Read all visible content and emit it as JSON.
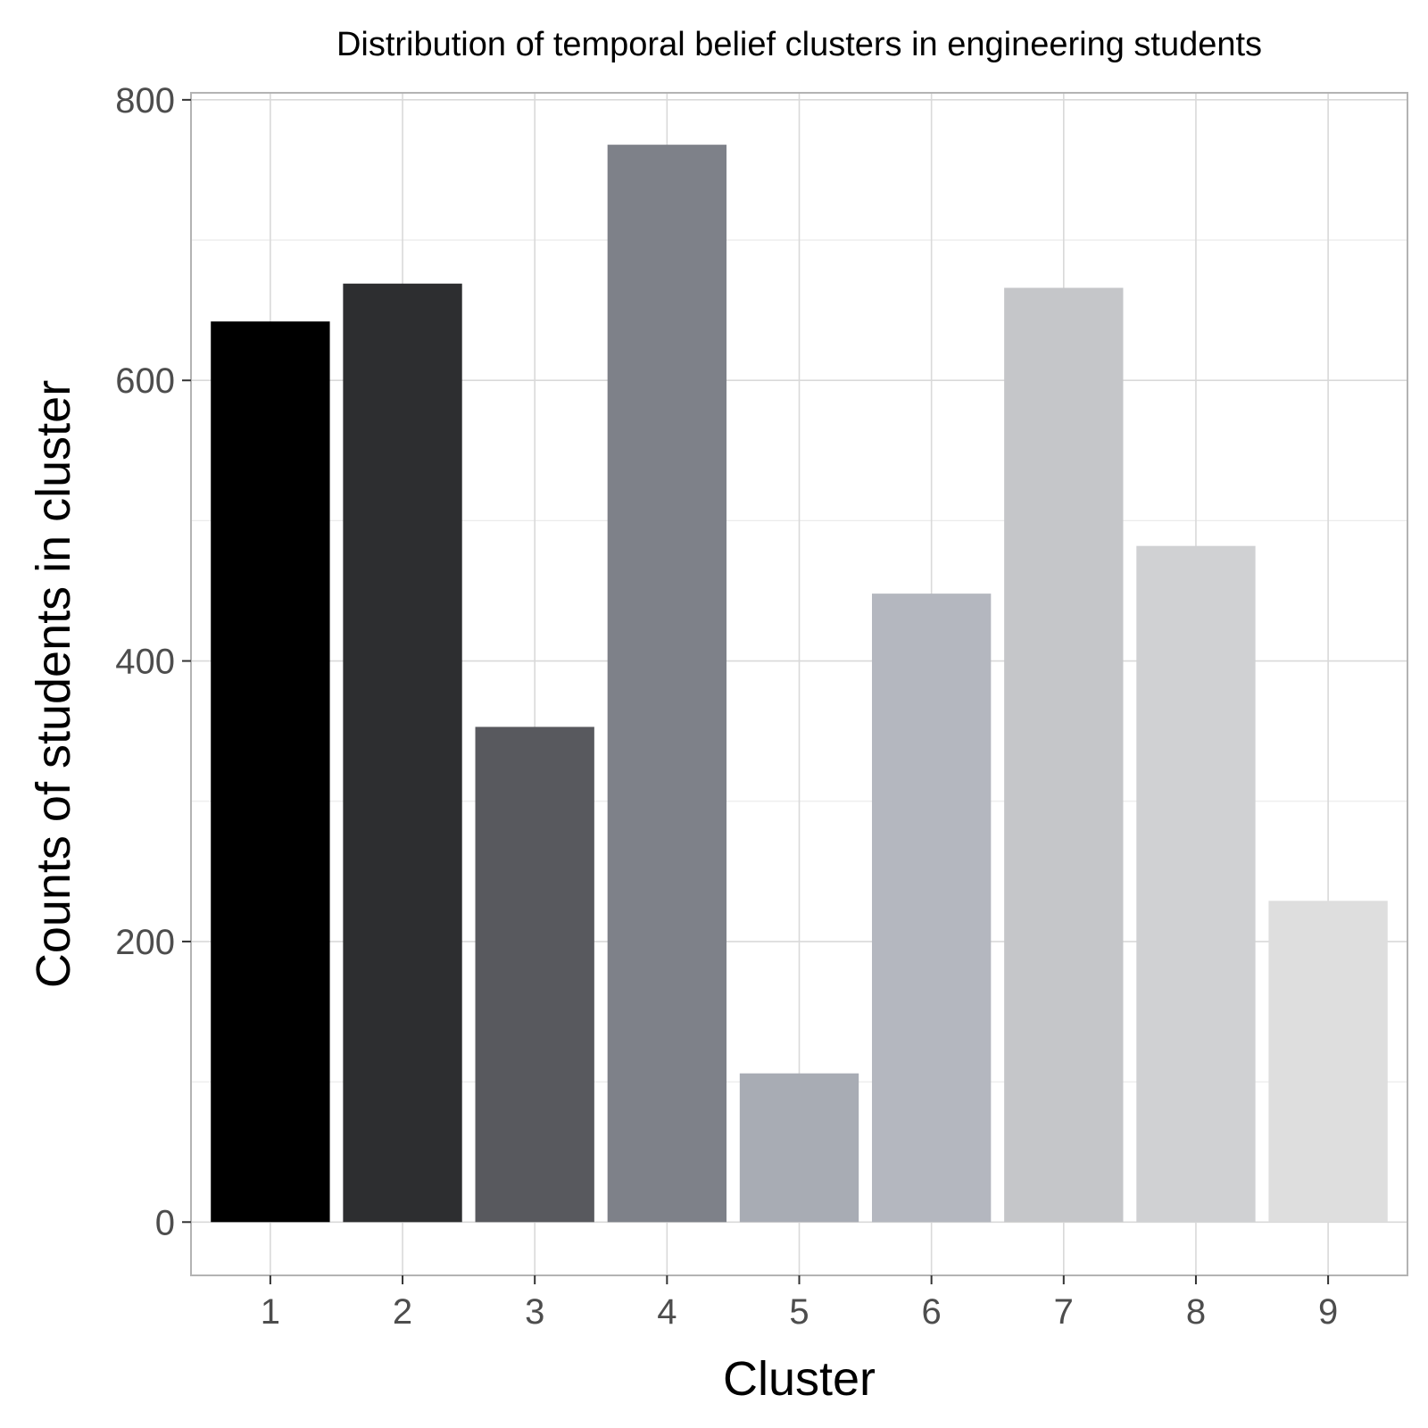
{
  "chart_data": {
    "type": "bar",
    "title": "Distribution of temporal belief clusters in engineering students",
    "xlabel": "Cluster",
    "ylabel": "Counts of students in cluster",
    "categories": [
      "1",
      "2",
      "3",
      "4",
      "5",
      "6",
      "7",
      "8",
      "9"
    ],
    "values": [
      642,
      669,
      353,
      768,
      106,
      448,
      666,
      482,
      229
    ],
    "colors": [
      "#000000",
      "#2d2e30",
      "#58595e",
      "#7e8189",
      "#a8acb4",
      "#b4b7bf",
      "#c5c6c9",
      "#d0d1d3",
      "#dedede"
    ],
    "ylim": [
      -38,
      805
    ],
    "yticks": [
      0,
      200,
      400,
      600,
      800
    ],
    "grid": true,
    "legend": "none",
    "colors_theme": {
      "panel_border": "#b3b3b3",
      "grid_major": "#d9d9d9",
      "grid_minor": "#ebebeb",
      "tick_text": "#4d4d4d"
    }
  }
}
